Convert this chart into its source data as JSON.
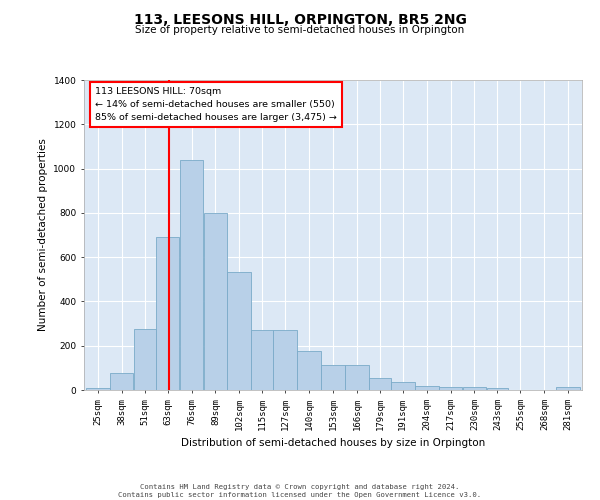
{
  "title": "113, LEESONS HILL, ORPINGTON, BR5 2NG",
  "subtitle": "Size of property relative to semi-detached houses in Orpington",
  "xlabel": "Distribution of semi-detached houses by size in Orpington",
  "ylabel": "Number of semi-detached properties",
  "bar_color": "#b8d0e8",
  "bar_edge_color": "#7aaac8",
  "bg_color": "#dce8f5",
  "annotation_text": "113 LEESONS HILL: 70sqm\n← 14% of semi-detached houses are smaller (550)\n85% of semi-detached houses are larger (3,475) →",
  "property_line_x": 70,
  "ylim": [
    0,
    1400
  ],
  "categories": [
    "25sqm",
    "38sqm",
    "51sqm",
    "63sqm",
    "76sqm",
    "89sqm",
    "102sqm",
    "115sqm",
    "127sqm",
    "140sqm",
    "153sqm",
    "166sqm",
    "179sqm",
    "191sqm",
    "204sqm",
    "217sqm",
    "230sqm",
    "243sqm",
    "255sqm",
    "268sqm",
    "281sqm"
  ],
  "bin_edges": [
    25,
    38,
    51,
    63,
    76,
    89,
    102,
    115,
    127,
    140,
    153,
    166,
    179,
    191,
    204,
    217,
    230,
    243,
    255,
    268,
    281,
    294
  ],
  "values": [
    10,
    75,
    275,
    690,
    1040,
    800,
    535,
    270,
    270,
    175,
    115,
    115,
    55,
    35,
    20,
    15,
    15,
    10,
    2,
    2,
    15
  ],
  "footer": "Contains HM Land Registry data © Crown copyright and database right 2024.\nContains public sector information licensed under the Open Government Licence v3.0.",
  "grid_color": "#ffffff",
  "yticks": [
    0,
    200,
    400,
    600,
    800,
    1000,
    1200,
    1400
  ]
}
